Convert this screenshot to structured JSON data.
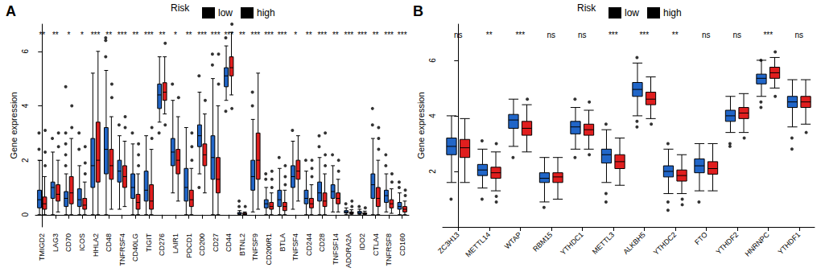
{
  "chart_data": [
    {
      "type": "boxplot",
      "title": "A",
      "legend_title": "Risk",
      "legend": "top",
      "y_label": "Gene expression",
      "ylim": [
        -0.45,
        7.0
      ],
      "yticks": [
        0,
        2,
        4,
        6
      ],
      "grid": false,
      "categories": [
        "TMIGD2",
        "LAG3",
        "CD70",
        "ICOS",
        "HHLA2",
        "CD48",
        "TNFRSF4",
        "CD40LG",
        "TIGIT",
        "CD276",
        "LAIR1",
        "PDCD1",
        "CD200",
        "CD27",
        "CD44",
        "BTNL2",
        "TNFSF9",
        "CD200R1",
        "BTLA",
        "TNFSF4",
        "CD244",
        "CD28",
        "TNFSF14",
        "ADORA2A",
        "IDO2",
        "CTLA4",
        "TNFRSF8",
        "CD160"
      ],
      "annotations": [
        "**",
        "**",
        "*",
        "*",
        "***",
        "**",
        "***",
        "**",
        "***",
        "**",
        "*",
        "**",
        "***",
        "***",
        "***",
        "**",
        "***",
        "***",
        "***",
        "*",
        "**",
        "***",
        "**",
        "***",
        "***",
        "**",
        "***",
        "***"
      ],
      "series": [
        {
          "name": "low",
          "color": "#2166c8",
          "values": [
            [
              0,
              0.25,
              0.55,
              0.9,
              2.0
            ],
            [
              0,
              0.6,
              1.0,
              1.2,
              2.3
            ],
            [
              0,
              0.3,
              0.6,
              0.85,
              1.5
            ],
            [
              0,
              0.3,
              0.55,
              0.95,
              1.8
            ],
            [
              0,
              1.0,
              1.8,
              2.8,
              5.2
            ],
            [
              0,
              1.5,
              2.4,
              3.2,
              5.3
            ],
            [
              0.2,
              1.2,
              1.6,
              2.0,
              2.9
            ],
            [
              0,
              0.6,
              1.0,
              1.5,
              2.6
            ],
            [
              0,
              0.5,
              0.9,
              1.6,
              2.9
            ],
            [
              3.4,
              3.9,
              4.4,
              4.8,
              5.8
            ],
            [
              0.8,
              1.8,
              2.3,
              2.8,
              4.2
            ],
            [
              0,
              0.5,
              1.0,
              1.7,
              3.2
            ],
            [
              1.5,
              2.5,
              2.9,
              3.3,
              4.5
            ],
            [
              0,
              1.3,
              2.1,
              2.9,
              5.0
            ],
            [
              4.2,
              4.7,
              5.1,
              5.4,
              6.2
            ],
            [
              0,
              0.02,
              0.05,
              0.08,
              0.15
            ],
            [
              0.1,
              0.9,
              1.4,
              2.0,
              3.5
            ],
            [
              0,
              0.25,
              0.4,
              0.55,
              1.0
            ],
            [
              0,
              0.3,
              0.55,
              0.9,
              1.7
            ],
            [
              0.2,
              1.0,
              1.4,
              1.8,
              2.7
            ],
            [
              0,
              0.4,
              0.6,
              0.9,
              1.6
            ],
            [
              0,
              0.5,
              0.8,
              1.2,
              2.1
            ],
            [
              0.1,
              0.6,
              0.85,
              1.1,
              1.8
            ],
            [
              0,
              0.06,
              0.1,
              0.15,
              0.25
            ],
            [
              0,
              0.04,
              0.08,
              0.12,
              0.2
            ],
            [
              0,
              0.6,
              1.1,
              1.5,
              2.8
            ],
            [
              0.1,
              0.45,
              0.7,
              0.9,
              1.5
            ],
            [
              0,
              0.2,
              0.3,
              0.45,
              0.8
            ]
          ],
          "outliers": [
            [
              2.4,
              3.0
            ],
            [
              2.8
            ],
            [
              1.8,
              2.2,
              2.6,
              3.0,
              4.7
            ],
            [
              2.4,
              3.0
            ],
            [],
            [
              5.8,
              6.4,
              6.5
            ],
            [
              3.3
            ],
            [
              3.0
            ],
            [],
            [
              3.0
            ],
            [
              4.8
            ],
            [],
            [
              5.1,
              1.0
            ],
            [
              5.5,
              5.9
            ],
            [
              3.8,
              6.5
            ],
            [
              0.3,
              0.5
            ],
            [
              4.0,
              4.5
            ],
            [
              1.3,
              1.5
            ],
            [
              2.1
            ],
            [
              3.1
            ],
            [
              2.0
            ],
            [
              2.5,
              2.9
            ],
            [
              2.2
            ],
            [
              0.4
            ],
            [
              0.3
            ],
            [
              3.3,
              3.9
            ],
            [
              1.8,
              2.2
            ],
            [
              1.0,
              1.2
            ]
          ]
        },
        {
          "name": "high",
          "color": "#e01e1e",
          "values": [
            [
              0,
              0.2,
              0.4,
              0.65,
              1.4
            ],
            [
              0.1,
              0.5,
              0.75,
              1.1,
              2.0
            ],
            [
              0,
              0.4,
              0.8,
              1.4,
              2.8
            ],
            [
              0,
              0.2,
              0.35,
              0.6,
              1.2
            ],
            [
              0,
              1.2,
              2.0,
              3.4,
              6.0
            ],
            [
              0.2,
              1.3,
              1.8,
              2.4,
              3.6
            ],
            [
              0.3,
              1.0,
              1.4,
              1.8,
              2.7
            ],
            [
              0,
              0.2,
              0.45,
              0.75,
              1.5
            ],
            [
              0,
              0.2,
              0.5,
              1.1,
              2.4
            ],
            [
              3.7,
              4.2,
              4.5,
              4.85,
              5.8
            ],
            [
              0.5,
              1.5,
              2.0,
              2.4,
              3.6
            ],
            [
              0,
              0.3,
              0.55,
              0.9,
              1.7
            ],
            [
              0.8,
              1.8,
              2.2,
              2.6,
              3.7
            ],
            [
              0,
              0.8,
              1.3,
              2.1,
              4.0
            ],
            [
              4.4,
              5.1,
              5.4,
              5.8,
              6.7
            ],
            [
              0,
              0.01,
              0.03,
              0.06,
              0.1
            ],
            [
              0.2,
              1.3,
              2.0,
              3.0,
              5.2
            ],
            [
              0,
              0.2,
              0.3,
              0.45,
              0.8
            ],
            [
              0,
              0.15,
              0.3,
              0.45,
              0.9
            ],
            [
              0.5,
              1.3,
              1.6,
              2.0,
              2.9
            ],
            [
              0,
              0.25,
              0.4,
              0.6,
              1.1
            ],
            [
              0,
              0.3,
              0.5,
              0.8,
              1.5
            ],
            [
              0.1,
              0.4,
              0.6,
              0.8,
              1.3
            ],
            [
              0,
              0.04,
              0.07,
              0.1,
              0.18
            ],
            [
              0,
              0.02,
              0.04,
              0.07,
              0.13
            ],
            [
              0,
              0.3,
              0.6,
              1.0,
              2.0
            ],
            [
              0.05,
              0.25,
              0.4,
              0.55,
              0.95
            ],
            [
              0,
              0.1,
              0.2,
              0.3,
              0.5
            ]
          ],
          "outliers": [
            [
              1.8,
              2.3,
              3.1
            ],
            [
              2.5,
              3.0
            ],
            [
              3.2,
              4.0
            ],
            [
              1.5,
              1.9,
              2.5
            ],
            [],
            [
              4.3,
              4.8
            ],
            [
              3.2,
              3.6
            ],
            [
              1.8,
              2.2,
              2.6
            ],
            [
              2.8,
              3.2
            ],
            [
              6.3,
              3.3
            ],
            [
              4.3
            ],
            [
              2.0,
              2.5,
              3.0
            ],
            [
              4.2
            ],
            [
              4.8,
              5.9
            ],
            [
              7.0,
              3.9
            ],
            [
              0.3
            ],
            [],
            [
              1.0,
              1.3,
              1.6
            ],
            [
              1.1,
              1.4,
              1.8
            ],
            [],
            [
              1.4,
              1.7,
              2.0
            ],
            [
              1.8,
              2.2,
              3.0
            ],
            [
              1.6,
              2.0
            ],
            [
              0.3,
              0.5
            ],
            [
              0.25
            ],
            [
              2.4,
              2.8,
              3.2
            ],
            [
              1.2,
              1.5
            ],
            [
              0.7,
              0.9
            ]
          ]
        }
      ]
    },
    {
      "type": "boxplot",
      "title": "B",
      "legend_title": "Risk",
      "legend": "top",
      "y_label": "Gene expression",
      "ylim": [
        0.0,
        7.3
      ],
      "yticks": [
        2,
        4,
        6
      ],
      "grid": false,
      "categories": [
        "ZC3H13",
        "METTL14",
        "WTAP",
        "RBM15",
        "YTHDC1",
        "METTL3",
        "ALKBH5",
        "YTHDC2",
        "FTO",
        "YTHDF2",
        "HNRNPC",
        "YTHDF1"
      ],
      "annotations": [
        "ns",
        "**",
        "***",
        "ns",
        "ns",
        "***",
        "***",
        "**",
        "ns",
        "ns",
        "***",
        "ns"
      ],
      "series": [
        {
          "name": "low",
          "color": "#2166c8",
          "values": [
            [
              1.6,
              2.6,
              2.9,
              3.2,
              4.0
            ],
            [
              1.4,
              1.85,
              2.05,
              2.25,
              2.8
            ],
            [
              2.9,
              3.55,
              3.85,
              4.05,
              4.6
            ],
            [
              0.9,
              1.6,
              1.75,
              1.95,
              2.5
            ],
            [
              2.8,
              3.35,
              3.6,
              3.8,
              4.3
            ],
            [
              1.6,
              2.3,
              2.6,
              2.8,
              3.5
            ],
            [
              4.0,
              4.7,
              4.95,
              5.2,
              5.9
            ],
            [
              1.2,
              1.8,
              2.0,
              2.2,
              2.8
            ],
            [
              1.3,
              1.95,
              2.2,
              2.45,
              3.0
            ],
            [
              3.4,
              3.8,
              4.0,
              4.2,
              4.7
            ],
            [
              4.7,
              5.15,
              5.35,
              5.5,
              6.0
            ],
            [
              3.6,
              4.3,
              4.5,
              4.7,
              5.3
            ]
          ],
          "outliers": [
            [
              1.0
            ],
            [
              1.0,
              3.1
            ],
            [
              2.5
            ],
            [
              0.7
            ],
            [
              2.5,
              4.6
            ],
            [
              1.2,
              0.9,
              3.7
            ],
            [
              3.8,
              3.6,
              6.1
            ],
            [
              0.6,
              0.9,
              3.0
            ],
            [
              0.9
            ],
            [
              3.0,
              2.9
            ],
            [
              4.3,
              4.5,
              6.0
            ],
            [
              3.2,
              2.8
            ]
          ]
        },
        {
          "name": "high",
          "color": "#e01e1e",
          "values": [
            [
              1.6,
              2.5,
              2.85,
              3.15,
              3.9
            ],
            [
              1.3,
              1.75,
              1.95,
              2.15,
              2.7
            ],
            [
              2.7,
              3.3,
              3.55,
              3.8,
              4.4
            ],
            [
              1.0,
              1.6,
              1.8,
              1.95,
              2.5
            ],
            [
              2.8,
              3.3,
              3.5,
              3.7,
              4.2
            ],
            [
              1.5,
              2.1,
              2.35,
              2.6,
              3.2
            ],
            [
              3.9,
              4.4,
              4.6,
              4.85,
              5.4
            ],
            [
              1.2,
              1.65,
              1.85,
              2.05,
              2.6
            ],
            [
              1.3,
              1.9,
              2.1,
              2.35,
              3.0
            ],
            [
              3.4,
              3.9,
              4.1,
              4.3,
              4.8
            ],
            [
              5.0,
              5.35,
              5.55,
              5.75,
              6.1
            ],
            [
              3.7,
              4.3,
              4.5,
              4.7,
              5.3
            ]
          ],
          "outliers": [
            [],
            [
              0.9,
              1.1,
              3.0
            ],
            [
              4.6
            ],
            [],
            [
              2.6,
              4.5
            ],
            [],
            [
              3.7
            ],
            [
              0.8,
              1.0
            ],
            [],
            [
              3.2
            ],
            [
              4.7,
              6.3
            ],
            [
              3.4
            ]
          ]
        }
      ]
    }
  ]
}
